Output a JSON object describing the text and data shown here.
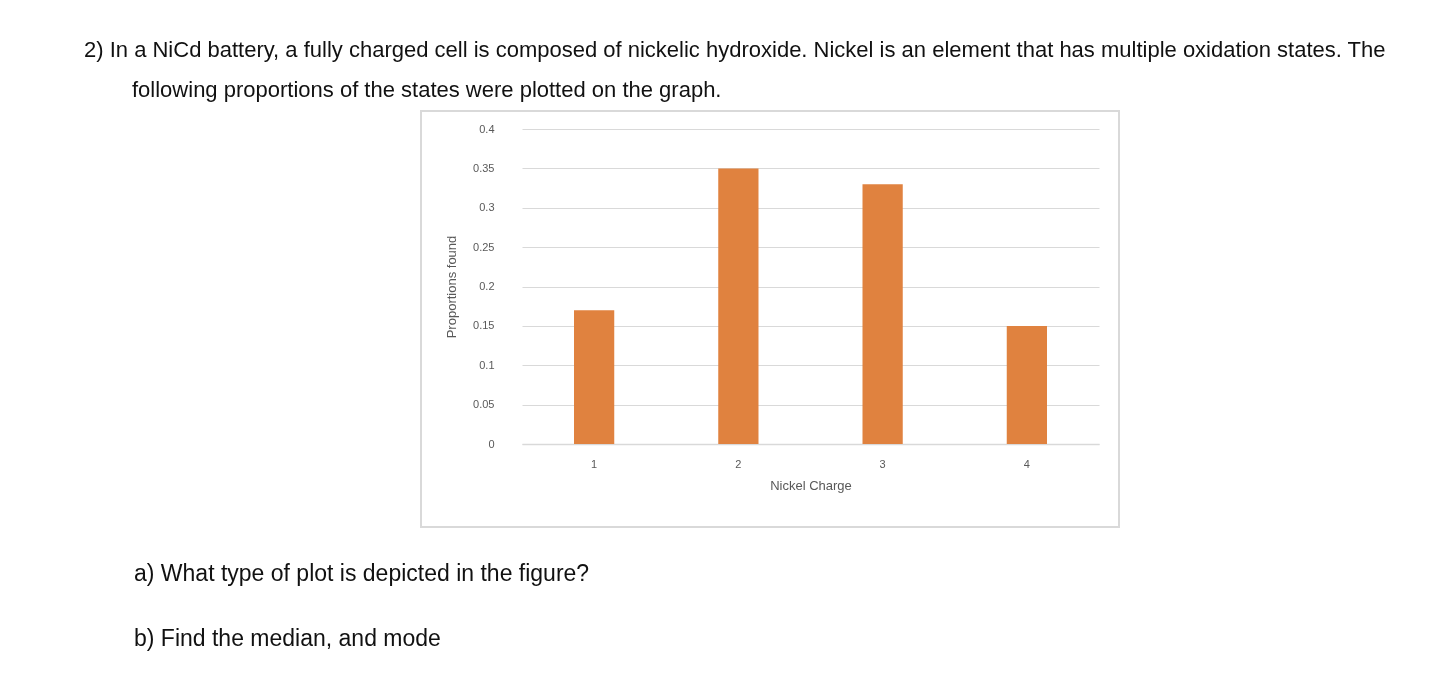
{
  "chart_data": {
    "type": "bar",
    "title": "2)  In a NiCd battery, a fully charged cell is composed of nickelic hydroxide. Nickel is an element that has multiple oxidation states. The following proportions of the states were plotted on the graph.",
    "annotations": [
      "a)  What type of plot is depicted in the figure?",
      "b)  Find the median, and mode"
    ],
    "xlabel": "Nickel Charge",
    "ylabel": "Proportions found",
    "categories": [
      "1",
      "2",
      "3",
      "4"
    ],
    "values": [
      0.17,
      0.35,
      0.33,
      0.15
    ],
    "color": "#e0823f",
    "ylim": [
      0,
      0.4
    ],
    "yticks": [
      0,
      0.05,
      0.1,
      0.15,
      0.2,
      0.25,
      0.3,
      0.35,
      0.4
    ],
    "grid": "y"
  }
}
